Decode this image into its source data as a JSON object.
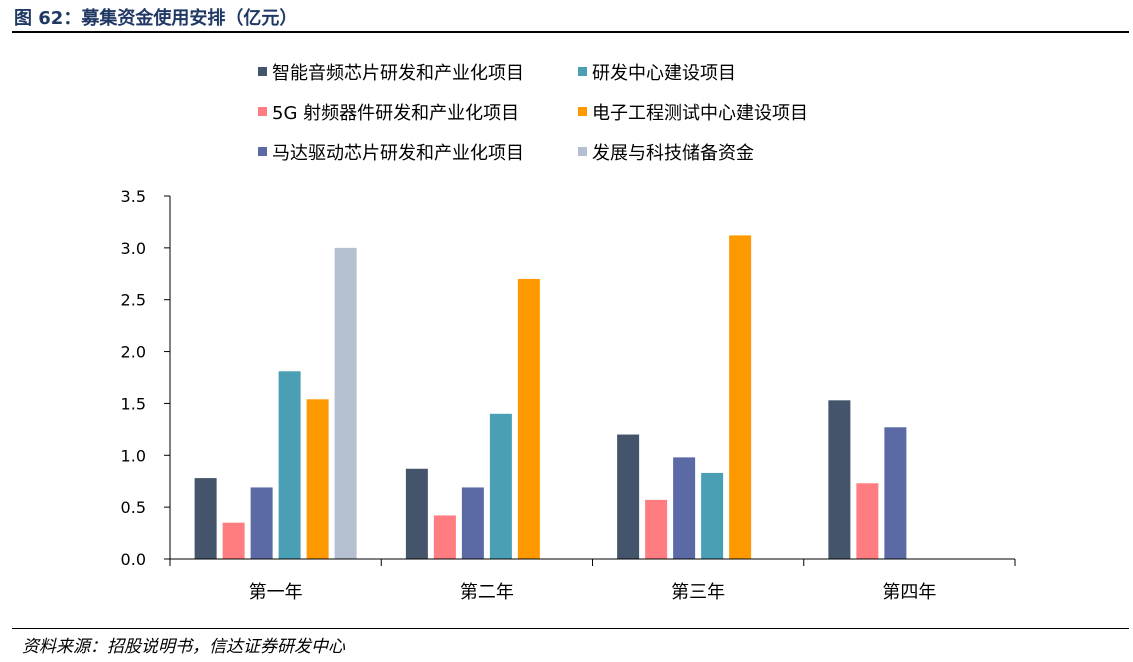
{
  "figure": {
    "title": "图 62：募集资金使用安排（亿元）",
    "source": "资料来源：招股说明书，信达证券研发中心"
  },
  "chart_data": {
    "type": "bar",
    "title": "",
    "xlabel": "",
    "ylabel": "",
    "categories": [
      "第一年",
      "第二年",
      "第三年",
      "第四年"
    ],
    "ylim": [
      0,
      3.5
    ],
    "yticks": [
      "0.0",
      "0.5",
      "1.0",
      "1.5",
      "2.0",
      "2.5",
      "3.0",
      "3.5"
    ],
    "grid": false,
    "legend_position": "top",
    "series": [
      {
        "name": "智能音频芯片研发和产业化项目",
        "color": "#44546a",
        "values": [
          0.78,
          0.87,
          1.2,
          1.53
        ]
      },
      {
        "name": "5G 射频器件研发和产业化项目",
        "color": "#ff7c80",
        "values": [
          0.35,
          0.42,
          0.57,
          0.73
        ]
      },
      {
        "name": "马达驱动芯片研发和产业化项目",
        "color": "#5b6aa5",
        "values": [
          0.69,
          0.69,
          0.98,
          1.27
        ]
      },
      {
        "name": "研发中心建设项目",
        "color": "#4a9fb5",
        "values": [
          1.81,
          1.4,
          0.83,
          null
        ]
      },
      {
        "name": "电子工程测试中心建设项目",
        "color": "#ff9900",
        "values": [
          1.54,
          2.7,
          3.12,
          null
        ]
      },
      {
        "name": "发展与科技储备资金",
        "color": "#b4bfcf",
        "values": [
          3.0,
          null,
          null,
          null
        ]
      }
    ]
  }
}
